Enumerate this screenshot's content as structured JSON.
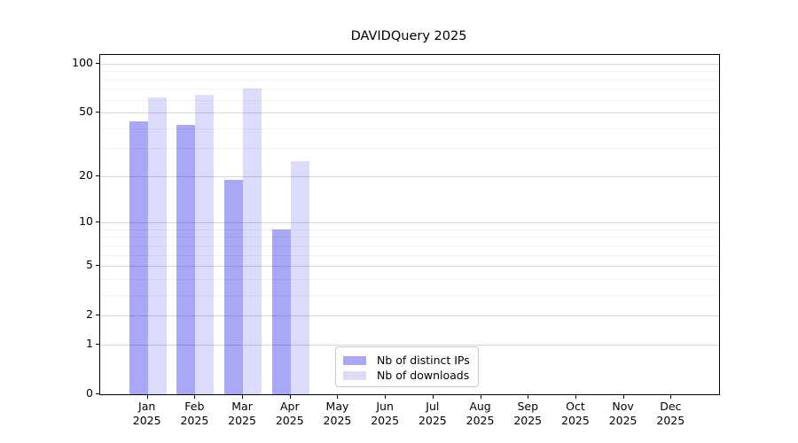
{
  "chart_data": {
    "type": "bar",
    "title": "DAVIDQuery 2025",
    "categories": [
      "Jan",
      "Feb",
      "Mar",
      "Apr",
      "May",
      "Jun",
      "Jul",
      "Aug",
      "Sep",
      "Oct",
      "Nov",
      "Dec"
    ],
    "category_year": "2025",
    "series": [
      {
        "name": "Nb of distinct IPs",
        "color": "rgba(0,0,230,0.34)",
        "legend_swatch_color": "#a9a9f7",
        "values": [
          44,
          42,
          19,
          9,
          null,
          null,
          null,
          null,
          null,
          null,
          null,
          null
        ]
      },
      {
        "name": "Nb of downloads",
        "color": "rgba(0,0,230,0.14)",
        "legend_swatch_color": "#dcdcf9",
        "values": [
          62,
          64,
          70,
          25,
          null,
          null,
          null,
          null,
          null,
          null,
          null,
          null
        ]
      }
    ],
    "y_scale": "log10(1+v)",
    "y_ticks": [
      0,
      1,
      2,
      5,
      10,
      20,
      50,
      100
    ],
    "y_minor_ticks": [
      3,
      4,
      6,
      7,
      8,
      9,
      30,
      40,
      60,
      70,
      80,
      90
    ],
    "ylim": [
      0,
      113
    ],
    "xlabel": "",
    "ylabel": "",
    "grid": true,
    "legend_position": "lower center-left inside plot",
    "colors": {
      "grid_major": "#d8d8d8",
      "grid_minor": "#f1f1f1",
      "spine": "#000000",
      "background": "#ffffff"
    }
  }
}
